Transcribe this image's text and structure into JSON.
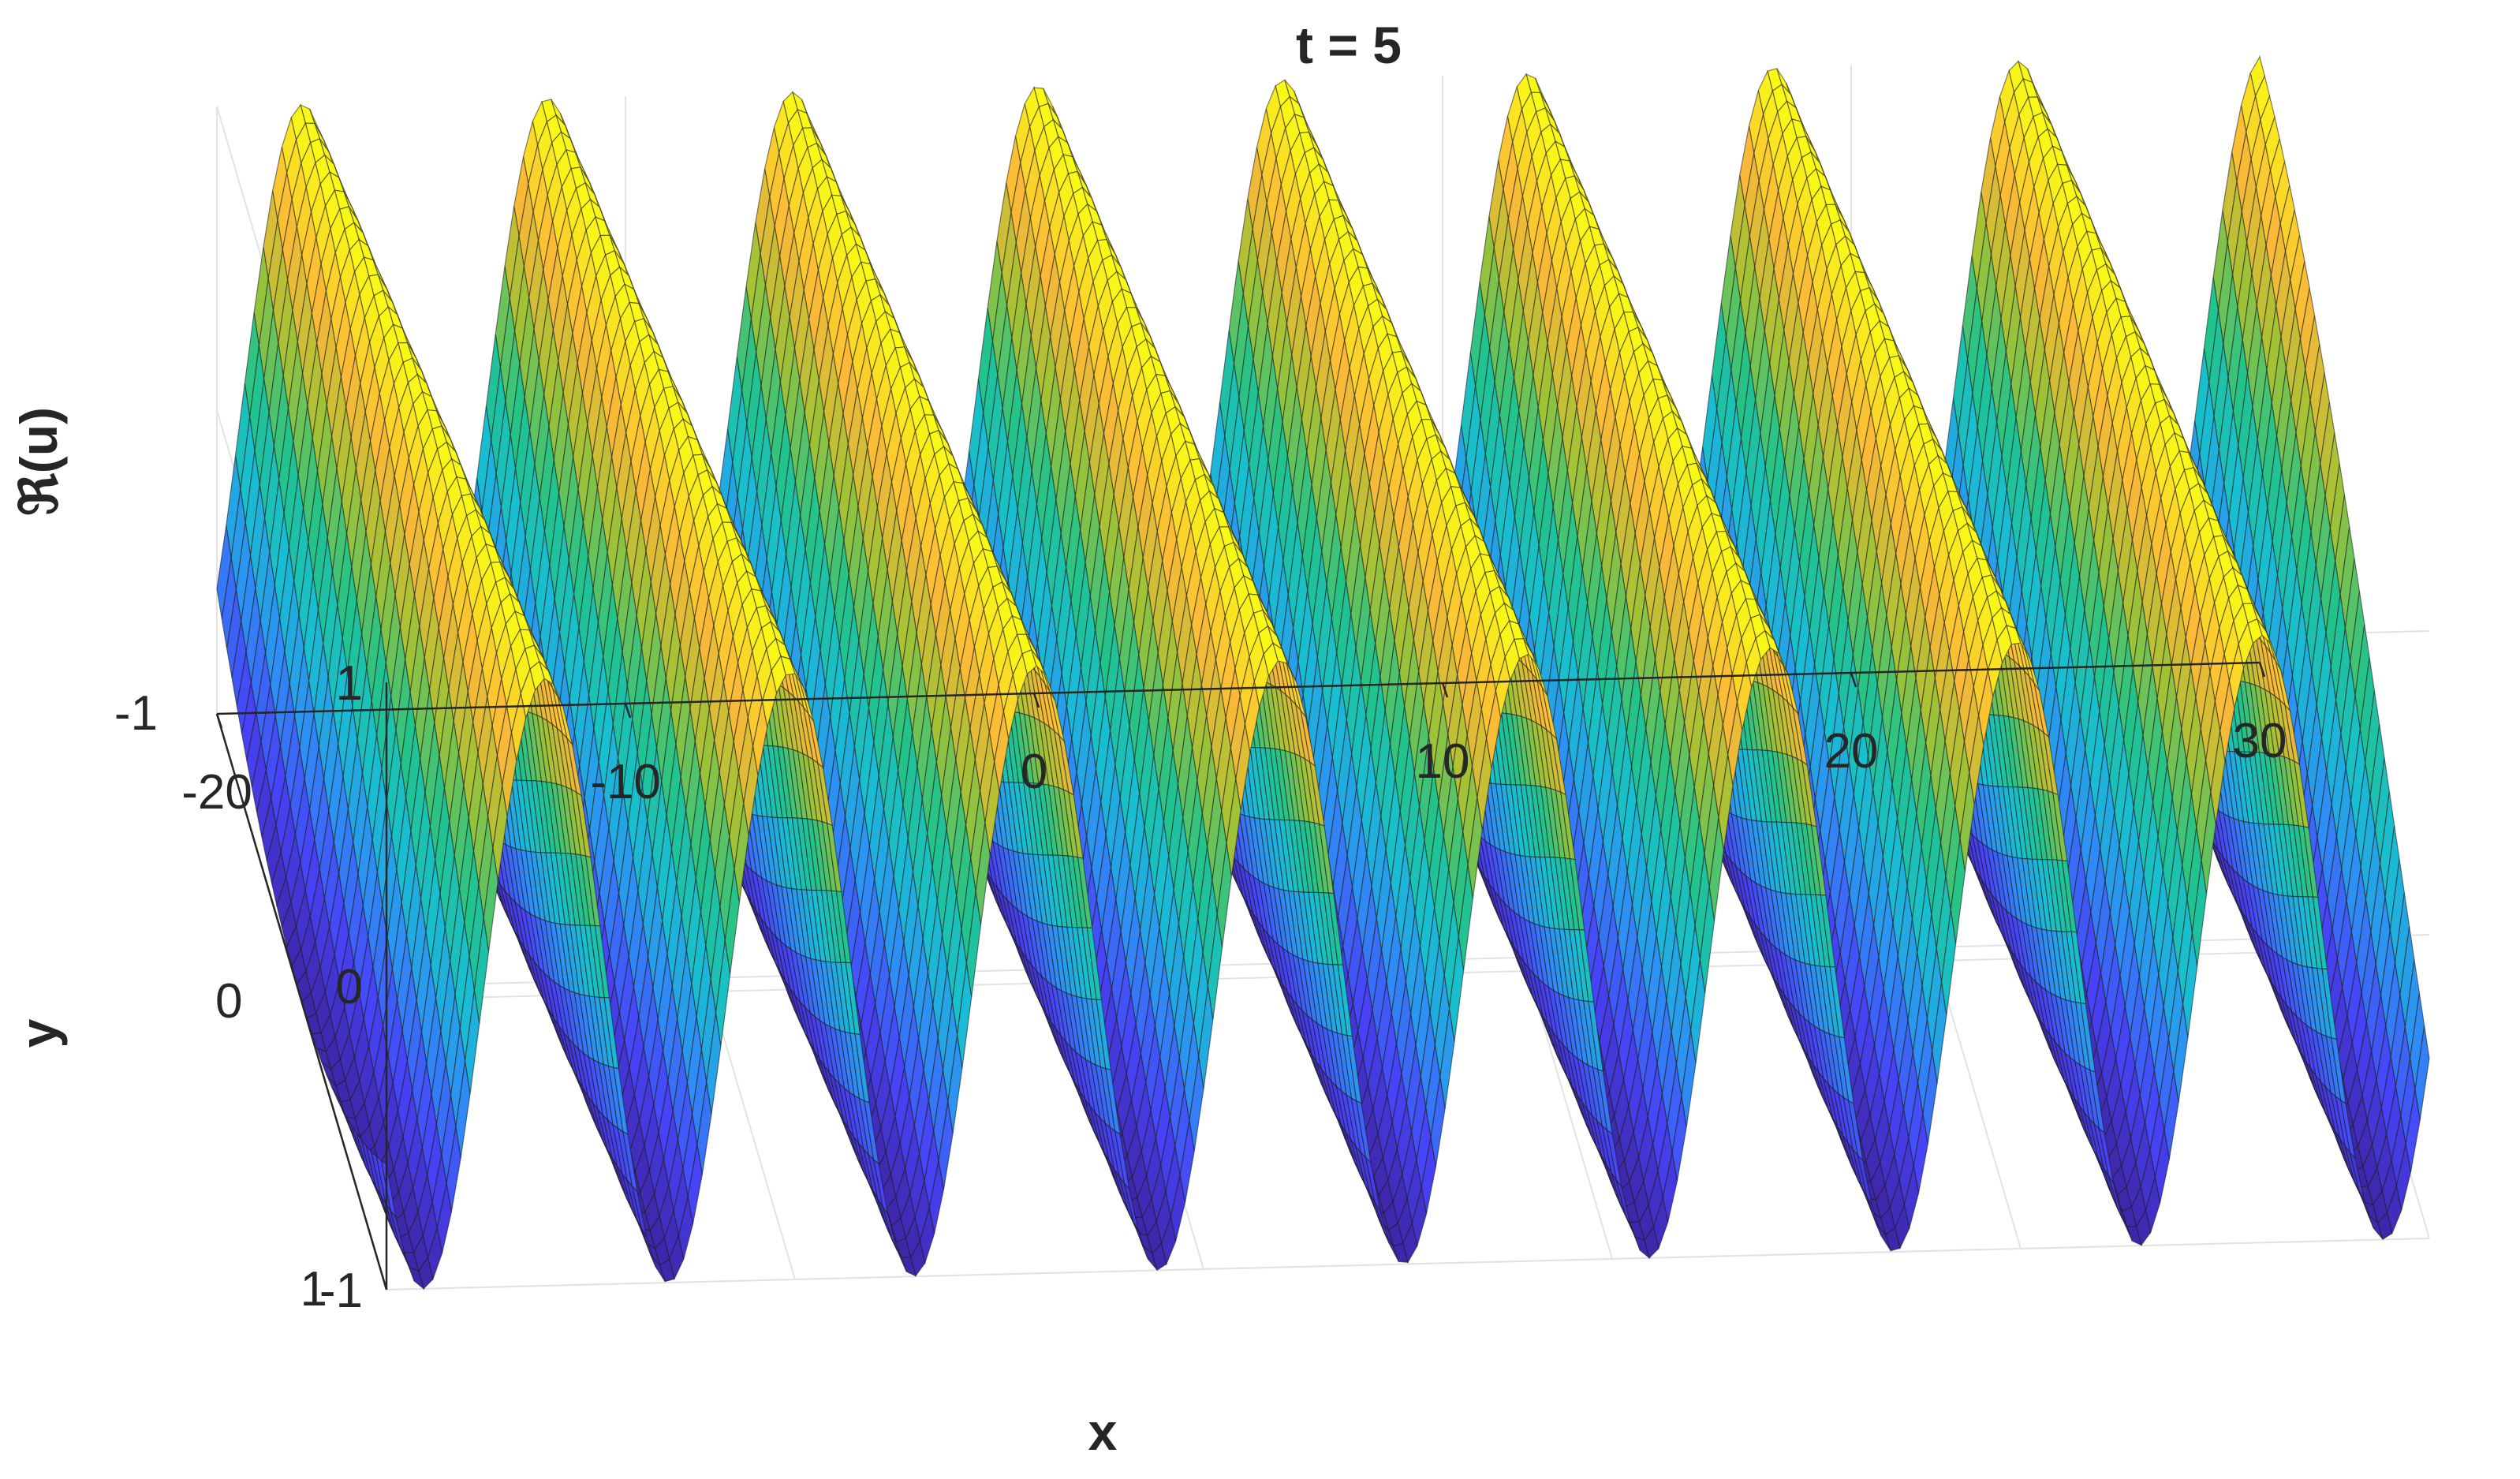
{
  "chart_data": {
    "type": "surface",
    "title": "t = 5",
    "xlabel": "x",
    "ylabel": "y",
    "zlabel": "ℜ(u)",
    "xlim": [
      -20,
      30
    ],
    "ylim": [
      -1,
      1
    ],
    "zlim": [
      -1,
      1
    ],
    "x_ticks": [
      "-20",
      "-10",
      "0",
      "10",
      "20",
      "30"
    ],
    "y_ticks": [
      "-1",
      "0",
      "1"
    ],
    "z_ticks": [
      "-1",
      "0",
      "1"
    ],
    "wave_peaks_x": [
      -17.0,
      -11.0,
      -5.0,
      1.0,
      7.0,
      13.0,
      19.0,
      25.0
    ],
    "wave_troughs_x": [
      -14.0,
      -8.0,
      -2.0,
      4.0,
      10.0,
      16.0,
      22.0,
      28.0
    ],
    "colormap": [
      "#3e26a8",
      "#4743f8",
      "#2f8ef5",
      "#18bfd1",
      "#22c38a",
      "#a1c235",
      "#fbb937",
      "#f9fb15"
    ],
    "grid": "on"
  }
}
